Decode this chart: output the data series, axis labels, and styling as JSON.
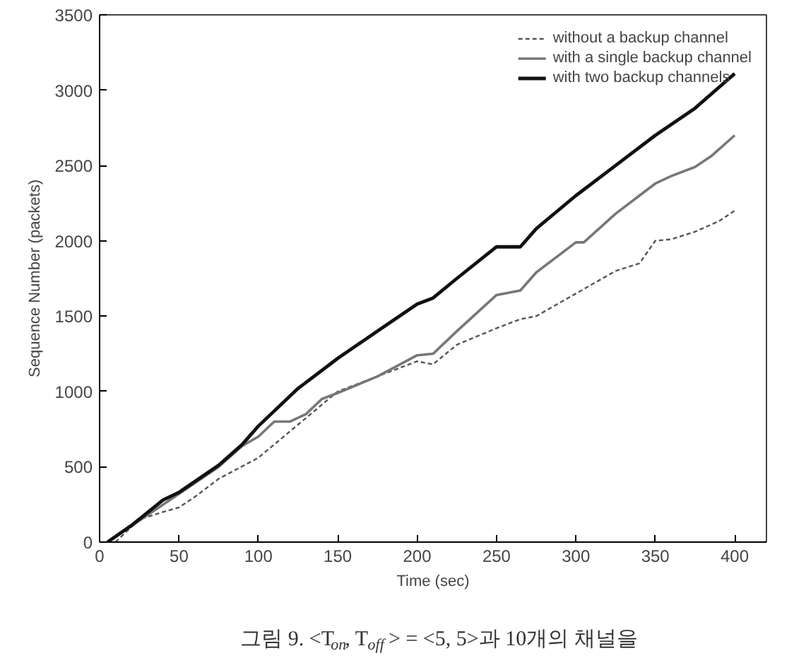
{
  "chart_data": {
    "type": "line",
    "xlabel": "Time (sec)",
    "ylabel": "Sequence Number (packets)",
    "annotations": [
      "그림 9. <T$_{on}$, T$_{off}$> = <5, 5>과 10개의 채널을"
    ],
    "xlim": [
      0,
      420
    ],
    "ylim": [
      0,
      3500
    ],
    "xticks": [
      0,
      50,
      100,
      150,
      200,
      250,
      300,
      350,
      400
    ],
    "yticks": [
      0,
      500,
      1000,
      1500,
      2000,
      2500,
      3000,
      3500
    ],
    "grid": false,
    "legend": "top right",
    "marker": "none",
    "series": [
      {
        "name": "without a backup channel",
        "color": "#555555",
        "line_style": "dashed",
        "x": [
          10,
          25,
          40,
          50,
          60,
          75,
          100,
          125,
          150,
          175,
          200,
          210,
          225,
          250,
          265,
          275,
          300,
          325,
          340,
          350,
          360,
          375,
          390,
          400
        ],
        "values": [
          0,
          150,
          200,
          230,
          300,
          420,
          560,
          780,
          1000,
          1100,
          1200,
          1180,
          1310,
          1420,
          1480,
          1500,
          1650,
          1800,
          1850,
          2000,
          2010,
          2060,
          2130,
          2200
        ]
      },
      {
        "name": "with a single backup channel",
        "color": "#777777",
        "line_style": "solid",
        "x": [
          5,
          50,
          75,
          90,
          100,
          110,
          120,
          130,
          140,
          150,
          175,
          200,
          210,
          225,
          250,
          265,
          275,
          300,
          305,
          325,
          340,
          350,
          360,
          375,
          385,
          400
        ],
        "values": [
          0,
          320,
          500,
          640,
          700,
          800,
          800,
          850,
          950,
          990,
          1100,
          1240,
          1250,
          1400,
          1640,
          1670,
          1790,
          1990,
          1990,
          2180,
          2300,
          2380,
          2430,
          2490,
          2560,
          2700
        ]
      },
      {
        "name": "with two backup channels",
        "color": "#111111",
        "line_style": "solid",
        "x": [
          5,
          20,
          40,
          50,
          75,
          90,
          100,
          125,
          150,
          175,
          200,
          210,
          225,
          250,
          265,
          275,
          300,
          325,
          350,
          375,
          400
        ],
        "values": [
          0,
          110,
          280,
          330,
          510,
          650,
          770,
          1020,
          1220,
          1400,
          1580,
          1620,
          1750,
          1960,
          1960,
          2080,
          2300,
          2500,
          2700,
          2880,
          3110
        ]
      }
    ]
  }
}
